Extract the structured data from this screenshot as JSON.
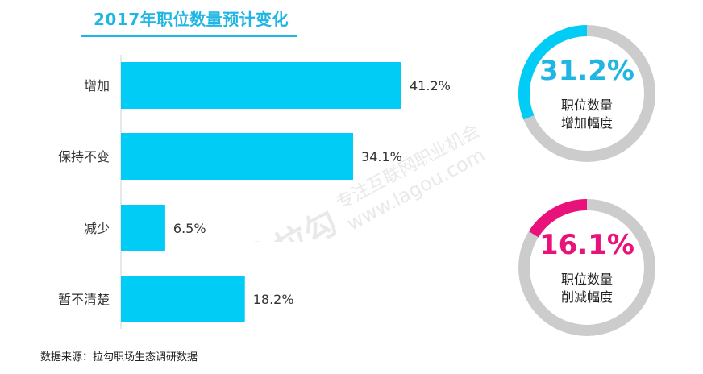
{
  "chart_data": [
    {
      "type": "bar",
      "orientation": "horizontal",
      "title": "2017年职位数量预计变化",
      "categories": [
        "增加",
        "保持不变",
        "减少",
        "暂不清楚"
      ],
      "values": [
        41.2,
        34.1,
        6.5,
        18.2
      ],
      "value_labels": [
        "41.2%",
        "34.1%",
        "6.5%",
        "18.2%"
      ],
      "bar_color": "#00ccf5",
      "xlim": [
        0,
        50
      ]
    },
    {
      "type": "pie",
      "style": "donut",
      "value": 31.2,
      "value_label": "31.2%",
      "label_line1": "职位数量",
      "label_line2": "增加幅度",
      "accent_color": "#00ccf5",
      "track_color": "#cccccc",
      "text_color": "#1fb6e3"
    },
    {
      "type": "pie",
      "style": "donut",
      "value": 16.1,
      "value_label": "16.1%",
      "label_line1": "职位数量",
      "label_line2": "削减幅度",
      "accent_color": "#e8127a",
      "track_color": "#cccccc",
      "text_color": "#e8127a"
    }
  ],
  "footer": "数据来源：拉勾职场生态调研数据",
  "watermark": {
    "brand": "拉勾",
    "text": "专注互联网职业机会",
    "domain": "www.lagou.com"
  }
}
